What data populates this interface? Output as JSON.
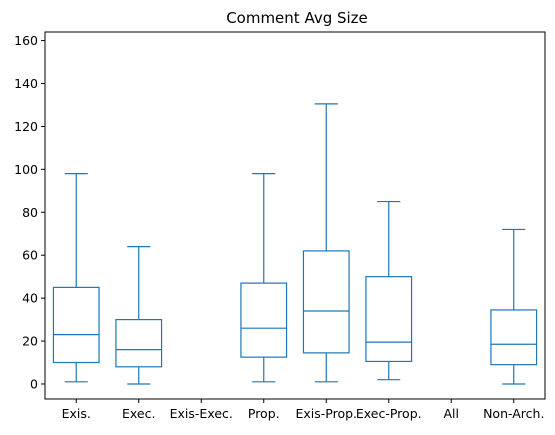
{
  "chart_data": {
    "type": "boxplot",
    "title": "Comment Avg Size",
    "xlabel": "",
    "ylabel": "",
    "ylim": [
      -7,
      164
    ],
    "y_ticks": [
      0,
      20,
      40,
      60,
      80,
      100,
      120,
      140,
      160
    ],
    "grid": false,
    "legend": "none",
    "categories": [
      "Exis.",
      "Exec.",
      "Exis-Exec.",
      "Prop.",
      "Exis-Prop.",
      "Exec-Prop.",
      "All",
      "Non-Arch."
    ],
    "boxes": [
      {
        "category": "Exis.",
        "whisker_low": 1,
        "q1": 10,
        "median": 23,
        "q3": 45,
        "whisker_high": 98
      },
      {
        "category": "Exec.",
        "whisker_low": 0,
        "q1": 8,
        "median": 16,
        "q3": 30,
        "whisker_high": 64
      },
      {
        "category": "Exis-Exec.",
        "empty": true
      },
      {
        "category": "Prop.",
        "whisker_low": 1,
        "q1": 12.5,
        "median": 26,
        "q3": 47,
        "whisker_high": 98
      },
      {
        "category": "Exis-Prop.",
        "whisker_low": 1,
        "q1": 14.5,
        "median": 34,
        "q3": 62,
        "whisker_high": 130.5
      },
      {
        "category": "Exec-Prop.",
        "whisker_low": 2,
        "q1": 10.5,
        "median": 19.5,
        "q3": 50,
        "whisker_high": 85
      },
      {
        "category": "All",
        "empty": true
      },
      {
        "category": "Non-Arch.",
        "whisker_low": 0,
        "q1": 9,
        "median": 18.5,
        "q3": 34.5,
        "whisker_high": 72
      }
    ],
    "colors": {
      "box": "#1f77b4",
      "axes": "#000000"
    }
  }
}
